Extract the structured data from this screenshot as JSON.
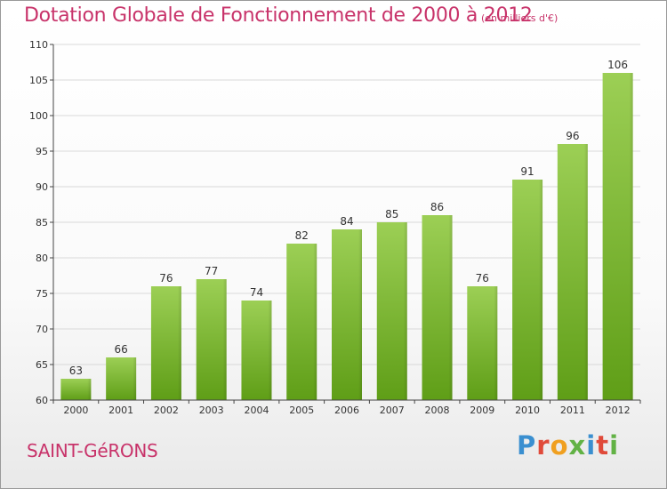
{
  "title": "Dotation Globale de Fonctionnement de 2000 à 2012",
  "unit_note": "(en milliers d'€)",
  "commune": "SAINT-GéRONS",
  "logo": {
    "text": "Proxiti",
    "letter_colors": [
      "#3a8fd0",
      "#e04a3a",
      "#f0a020",
      "#62b245",
      "#3a8fd0",
      "#e04a3a",
      "#62b245"
    ]
  },
  "colors": {
    "bar_top": "#9ccf55",
    "bar_bottom": "#5f9e17",
    "grid": "#d9d9d9",
    "axis": "#444444"
  },
  "chart_data": {
    "type": "bar",
    "title": "Dotation Globale de Fonctionnement de 2000 à 2012",
    "subtitle": "(en milliers d'€)",
    "xlabel": "",
    "ylabel": "",
    "ylim": [
      60,
      110
    ],
    "yticks": [
      60,
      65,
      70,
      75,
      80,
      85,
      90,
      95,
      100,
      105,
      110
    ],
    "grid": true,
    "categories": [
      "2000",
      "2001",
      "2002",
      "2003",
      "2004",
      "2005",
      "2006",
      "2007",
      "2008",
      "2009",
      "2010",
      "2011",
      "2012"
    ],
    "values": [
      63,
      66,
      76,
      77,
      74,
      82,
      84,
      85,
      86,
      76,
      91,
      96,
      106
    ]
  }
}
